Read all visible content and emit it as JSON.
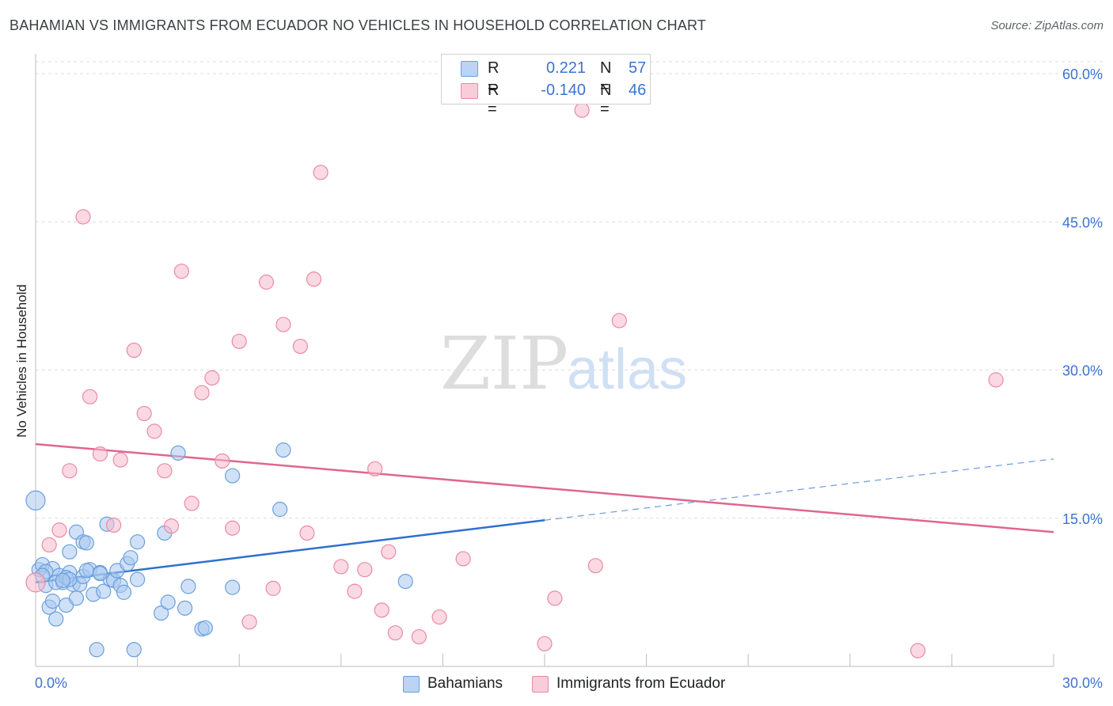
{
  "title": "BAHAMIAN VS IMMIGRANTS FROM ECUADOR NO VEHICLES IN HOUSEHOLD CORRELATION CHART",
  "source": "Source: ZipAtlas.com",
  "watermark": {
    "zip": "ZIP",
    "atlas": "atlas"
  },
  "legend": {
    "series1": {
      "r_label": "R =",
      "r_value": "0.221",
      "n_label": "N =",
      "n_value": "57"
    },
    "series2": {
      "r_label": "R =",
      "r_value": "-0.140",
      "n_label": "N =",
      "n_value": "46"
    }
  },
  "bottom_legend": {
    "series1": "Bahamians",
    "series2": "Immigrants from Ecuador"
  },
  "colors": {
    "blue_fill": "#a9c8f0",
    "blue_stroke": "#6a9fdc",
    "blue_line": "#2e6fd1",
    "pink_fill": "#f7b9cb",
    "pink_stroke": "#e98aa7",
    "pink_line": "#e0668f",
    "tick_text": "#3b73d1",
    "grid": "#dddddd"
  },
  "chart_data": {
    "type": "scatter",
    "title": "BAHAMIAN VS IMMIGRANTS FROM ECUADOR NO VEHICLES IN HOUSEHOLD CORRELATION CHART",
    "xlabel": "",
    "ylabel": "No Vehicles in Household",
    "xlim": [
      0,
      30
    ],
    "ylim": [
      0,
      60
    ],
    "x_tick_labels": [
      "0.0%",
      "30.0%"
    ],
    "y_ticks": [
      15,
      30,
      45,
      60
    ],
    "y_tick_labels": [
      "15.0%",
      "30.0%",
      "45.0%",
      "60.0%"
    ],
    "grid": true,
    "legend_position": "top-center",
    "series": [
      {
        "name": "Bahamians",
        "r": 0.221,
        "n": 57,
        "trend": {
          "x0": 0,
          "y0": 8.5,
          "x1": 15,
          "y1": 14.8,
          "dashed_to_x": 30,
          "dashed_to_y": 21.0
        },
        "points": [
          [
            0.0,
            16.8
          ],
          [
            0.1,
            9.8
          ],
          [
            0.2,
            10.3
          ],
          [
            0.3,
            8.2
          ],
          [
            0.4,
            6.0
          ],
          [
            0.5,
            9.9
          ],
          [
            0.5,
            6.6
          ],
          [
            0.6,
            4.8
          ],
          [
            0.7,
            9.2
          ],
          [
            0.8,
            8.5
          ],
          [
            0.9,
            6.2
          ],
          [
            1.0,
            11.6
          ],
          [
            1.0,
            9.5
          ],
          [
            1.1,
            8.3
          ],
          [
            1.2,
            6.9
          ],
          [
            1.2,
            13.6
          ],
          [
            1.3,
            8.3
          ],
          [
            1.4,
            12.6
          ],
          [
            1.4,
            9.1
          ],
          [
            1.5,
            12.5
          ],
          [
            1.6,
            9.8
          ],
          [
            1.7,
            7.3
          ],
          [
            1.8,
            1.7
          ],
          [
            1.9,
            9.5
          ],
          [
            2.0,
            7.6
          ],
          [
            2.1,
            14.4
          ],
          [
            2.2,
            8.8
          ],
          [
            2.3,
            8.7
          ],
          [
            2.4,
            9.7
          ],
          [
            2.5,
            8.2
          ],
          [
            2.6,
            7.5
          ],
          [
            2.7,
            10.4
          ],
          [
            2.8,
            11.0
          ],
          [
            2.9,
            1.7
          ],
          [
            3.0,
            8.8
          ],
          [
            3.0,
            12.6
          ],
          [
            3.7,
            5.4
          ],
          [
            3.8,
            13.5
          ],
          [
            3.9,
            6.5
          ],
          [
            4.2,
            21.6
          ],
          [
            4.4,
            5.9
          ],
          [
            4.5,
            8.1
          ],
          [
            4.9,
            3.8
          ],
          [
            5.0,
            3.9
          ],
          [
            5.8,
            19.3
          ],
          [
            5.8,
            8.0
          ],
          [
            7.2,
            15.9
          ],
          [
            7.3,
            21.9
          ],
          [
            10.9,
            8.6
          ],
          [
            0.3,
            9.6
          ],
          [
            0.6,
            8.5
          ],
          [
            0.9,
            9.0
          ],
          [
            1.0,
            8.8
          ],
          [
            1.5,
            9.7
          ],
          [
            0.2,
            9.2
          ],
          [
            0.8,
            8.7
          ],
          [
            1.9,
            9.4
          ]
        ]
      },
      {
        "name": "Immigrants from Ecuador",
        "r": -0.14,
        "n": 46,
        "trend": {
          "x0": 0,
          "y0": 22.5,
          "x1": 30,
          "y1": 13.6
        },
        "points": [
          [
            0.0,
            8.5
          ],
          [
            0.4,
            12.3
          ],
          [
            0.7,
            13.8
          ],
          [
            1.0,
            19.8
          ],
          [
            1.4,
            45.5
          ],
          [
            1.6,
            27.3
          ],
          [
            1.9,
            21.5
          ],
          [
            2.3,
            14.3
          ],
          [
            2.5,
            20.9
          ],
          [
            2.9,
            32.0
          ],
          [
            3.2,
            25.6
          ],
          [
            3.5,
            23.8
          ],
          [
            3.8,
            19.8
          ],
          [
            4.0,
            14.2
          ],
          [
            4.3,
            40.0
          ],
          [
            4.6,
            16.5
          ],
          [
            4.9,
            27.7
          ],
          [
            5.2,
            29.2
          ],
          [
            5.5,
            20.8
          ],
          [
            5.8,
            14.0
          ],
          [
            6.0,
            32.9
          ],
          [
            6.3,
            4.5
          ],
          [
            6.8,
            38.9
          ],
          [
            7.0,
            7.9
          ],
          [
            7.3,
            34.6
          ],
          [
            7.8,
            32.4
          ],
          [
            8.0,
            13.5
          ],
          [
            8.2,
            39.2
          ],
          [
            8.4,
            50.0
          ],
          [
            9.0,
            10.1
          ],
          [
            9.4,
            7.6
          ],
          [
            9.7,
            9.8
          ],
          [
            10.0,
            20.0
          ],
          [
            10.2,
            5.7
          ],
          [
            10.4,
            11.6
          ],
          [
            10.6,
            3.4
          ],
          [
            11.3,
            3.0
          ],
          [
            11.9,
            5.0
          ],
          [
            12.6,
            10.9
          ],
          [
            15.0,
            2.3
          ],
          [
            15.3,
            6.9
          ],
          [
            16.1,
            56.3
          ],
          [
            16.5,
            10.2
          ],
          [
            17.2,
            35.0
          ],
          [
            26.0,
            1.6
          ],
          [
            28.3,
            29.0
          ]
        ]
      }
    ]
  }
}
